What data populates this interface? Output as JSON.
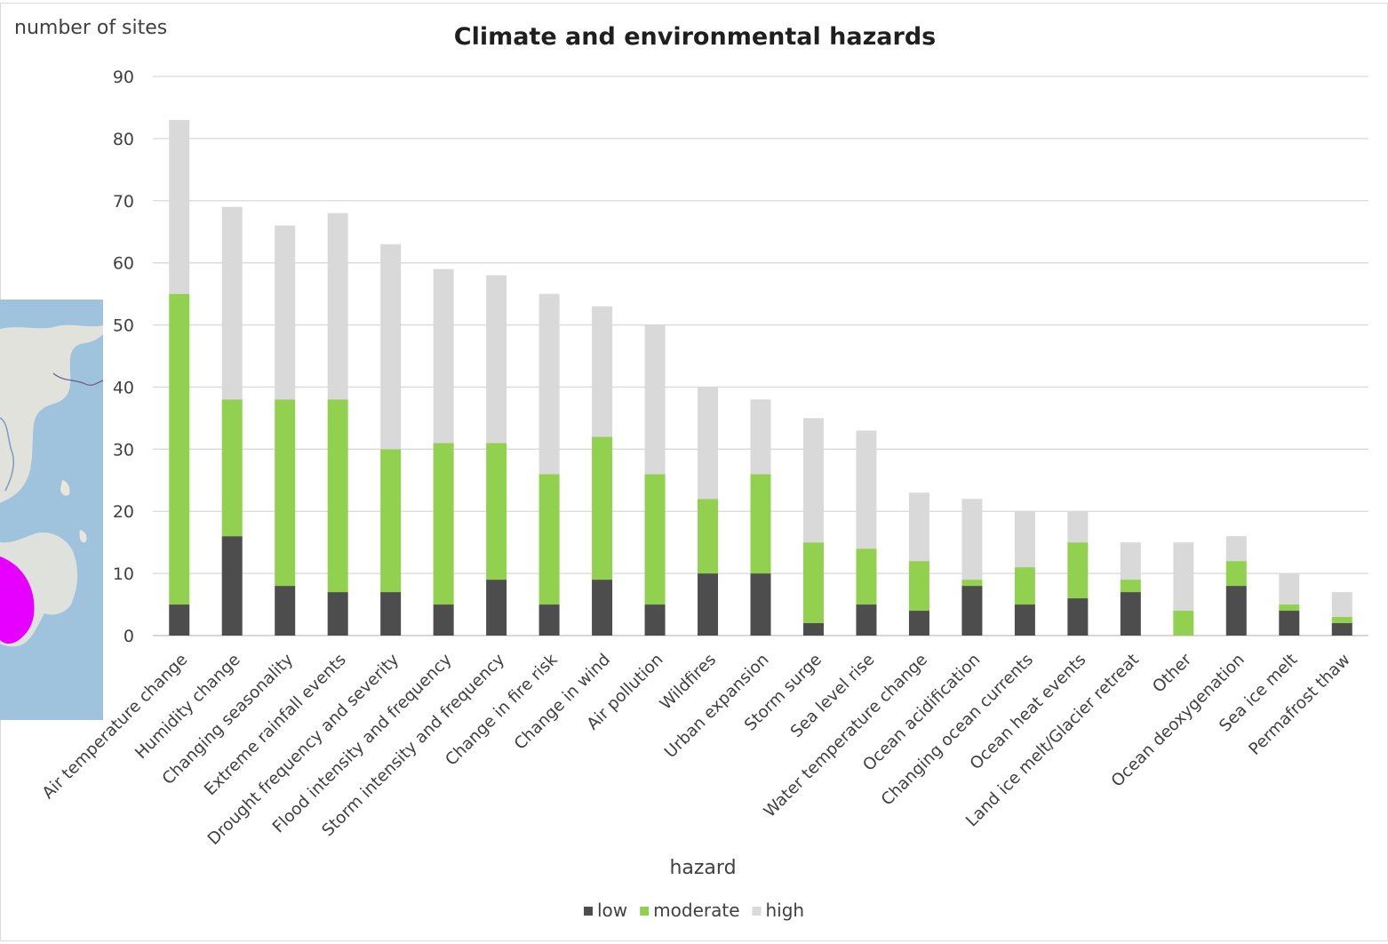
{
  "chart_data": {
    "type": "bar",
    "stacked": true,
    "title": "Climate and environmental hazards",
    "xlabel": "hazard",
    "ylabel": "number of sites",
    "ylim": [
      0,
      90
    ],
    "yticks": [
      0,
      10,
      20,
      30,
      40,
      50,
      60,
      70,
      80,
      90
    ],
    "grid": true,
    "legend_position": "bottom",
    "categories": [
      "Air temperature change",
      "Humidity change",
      "Changing seasonality",
      "Extreme rainfall events",
      "Drought frequency and severity",
      "Flood intensity and frequency",
      "Storm intensity and frequency",
      "Change in fire risk",
      "Change in wind",
      "Air pollution",
      "Wildfires",
      "Urban expansion",
      "Storm surge",
      "Sea level rise",
      "Water temperature change",
      "Ocean acidification",
      "Changing ocean currents",
      "Ocean heat events",
      "Land ice melt/Glacier retreat",
      "Other",
      "Ocean deoxygenation",
      "Sea ice melt",
      "Permafrost thaw"
    ],
    "series": [
      {
        "name": "low",
        "color": "#4d4d4d",
        "values": [
          5,
          16,
          8,
          7,
          7,
          5,
          9,
          5,
          9,
          5,
          10,
          10,
          2,
          5,
          4,
          8,
          5,
          6,
          7,
          0,
          8,
          4,
          2
        ]
      },
      {
        "name": "moderate",
        "color": "#92d050",
        "values": [
          50,
          22,
          30,
          31,
          23,
          26,
          22,
          21,
          23,
          21,
          12,
          16,
          13,
          9,
          8,
          1,
          6,
          9,
          2,
          4,
          4,
          1,
          1
        ]
      },
      {
        "name": "high",
        "color": "#d9d9d9",
        "values": [
          28,
          31,
          28,
          30,
          33,
          28,
          27,
          29,
          21,
          24,
          18,
          12,
          20,
          19,
          11,
          13,
          9,
          5,
          6,
          11,
          4,
          5,
          4
        ]
      }
    ]
  },
  "inset": {
    "ocean_color": "#9fc2dd",
    "land_color": "#e9e6dc",
    "highlight_color": "#e600ff"
  }
}
